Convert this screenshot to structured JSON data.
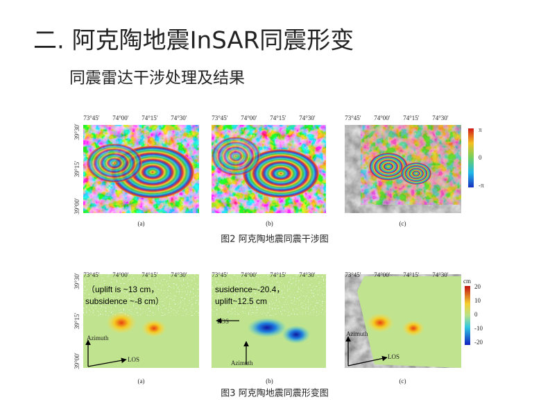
{
  "header": {
    "title": "二. 阿克陶地震InSAR同震形变",
    "subtitle": "同震雷达干涉处理及结果"
  },
  "figure2": {
    "x_ticks": [
      "73°45′",
      "74°00′",
      "74°15′",
      "74°30′"
    ],
    "y_ticks": [
      "39°30′",
      "39°15′",
      "39°00′"
    ],
    "panel_labels": [
      "(a)",
      "(b)",
      "(c)"
    ],
    "colorbar_labels": [
      "π",
      "0",
      "-π"
    ],
    "caption": "图2 阿克陶地震同震干涉图"
  },
  "figure3": {
    "x_ticks": [
      "73°45′",
      "74°00′",
      "74°15′",
      "74°30′"
    ],
    "y_ticks": [
      "39°30′",
      "39°15′",
      "39°00′"
    ],
    "panel_labels": [
      "(a)",
      "(b)",
      "(c)"
    ],
    "annotations": {
      "a": [
        "（uplift is ~13 cm，",
        "subsidence ~-8 cm）"
      ],
      "b": [
        "susidence~-20.4，",
        "uplift~12.5 cm"
      ],
      "azimuth": "Azimuth",
      "los": "LOS"
    },
    "colorbar_unit": "cm",
    "colorbar_labels": [
      "20",
      "10",
      "0",
      "-10",
      "-20"
    ],
    "caption": "图3 阿克陶地震同震形变图"
  }
}
